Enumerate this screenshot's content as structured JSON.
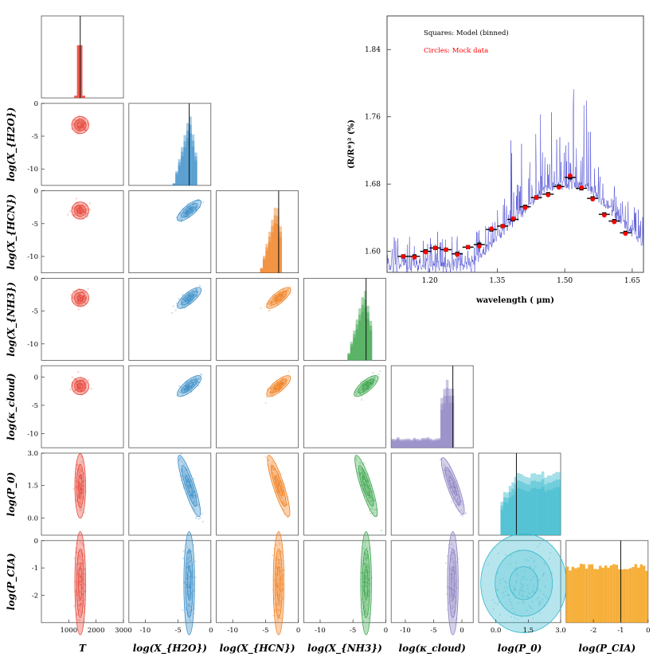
{
  "chart_data": {
    "type": "corner",
    "parameters": [
      {
        "key": "T",
        "label": "T",
        "color": "#e8473a",
        "range": [
          0,
          3000
        ],
        "ticks": [
          1000,
          2000,
          3000
        ],
        "true_value": 1420
      },
      {
        "key": "xh2o",
        "label": "log(X_H2O)",
        "color": "#3b8ec8",
        "range": [
          -12.5,
          0
        ],
        "ticks": [
          -10,
          -5,
          0
        ],
        "true_value": -3.3
      },
      {
        "key": "xhcn",
        "label": "log(X_HCN)",
        "color": "#f07f1e",
        "range": [
          -12.5,
          0
        ],
        "ticks": [
          -10,
          -5,
          0
        ],
        "true_value": -3.0
      },
      {
        "key": "xnh3",
        "label": "log(X_NH3)",
        "color": "#3aa54a",
        "range": [
          -12.5,
          0
        ],
        "ticks": [
          -10,
          -5,
          0
        ],
        "true_value": -3.0
      },
      {
        "key": "kcloud",
        "label": "log(kappa_cloud)",
        "color": "#8a7fc1",
        "range": [
          -12.5,
          2
        ],
        "ticks": [
          -10,
          -5,
          0
        ],
        "true_value": -1.6
      },
      {
        "key": "p0",
        "label": "log(P0)",
        "color": "#34b8cc",
        "range": [
          -0.8,
          3.0
        ],
        "ticks": [
          0.0,
          1.5,
          3.0
        ],
        "true_value": 0.95
      },
      {
        "key": "pcia",
        "label": "log(P_CIA)",
        "color": "#f5a623",
        "range": [
          -3.0,
          0
        ],
        "ticks": [
          -2,
          -1,
          0
        ],
        "true_value": -1.0
      }
    ],
    "axis_labels": {
      "T": "T",
      "xh2o": "log(X_{H2O})",
      "xhcn": "log(X_{HCN})",
      "xnh3": "log(X_{NH3})",
      "kcloud": "log(κ_cloud)",
      "p0": "log(P_0)",
      "pcia": "log(P_CIA)"
    },
    "tick_labels": {
      "T_y": [
        "0",
        "-5",
        "-10"
      ],
      "xh2o_y": [
        "0",
        "-5",
        "-10"
      ],
      "xhcn_y": [
        "0",
        "-5",
        "-10"
      ],
      "xnh3_y": [
        "0",
        "-5",
        "-10"
      ],
      "kcloud_y": [
        "0",
        "-5",
        "-10"
      ],
      "p0_y": [
        "3.0",
        "1.5",
        "0.0"
      ],
      "pcia_y": [
        "0",
        "-1",
        "-2"
      ],
      "T_x": [
        "1000",
        "2000",
        "3000"
      ],
      "log_x": [
        "-10",
        "-5",
        "0"
      ],
      "p0_x": [
        "0.0",
        "1.5",
        "3.0"
      ],
      "pcia_x": [
        "-2",
        "-1",
        "0"
      ]
    },
    "spectrum": {
      "type": "line",
      "xlabel": "wavelength ( μm)",
      "ylabel": "(R/R*)² (%)",
      "xlim": [
        1.105,
        1.675
      ],
      "ylim": [
        1.575,
        1.88
      ],
      "x_ticks": [
        1.2,
        1.35,
        1.5,
        1.65
      ],
      "x_tick_labels": [
        "1.20",
        "1.35",
        "1.50",
        "1.65"
      ],
      "y_ticks": [
        1.6,
        1.68,
        1.76,
        1.84
      ],
      "y_tick_labels": [
        "1.60",
        "1.68",
        "1.76",
        "1.84"
      ],
      "legend": [
        "Squares: Model (binned)",
        "Circles: Mock data"
      ],
      "legend_colors": [
        "#000000",
        "#ff0000"
      ],
      "wavelengths": [
        1.141,
        1.166,
        1.191,
        1.212,
        1.236,
        1.261,
        1.285,
        1.31,
        1.337,
        1.362,
        1.385,
        1.412,
        1.437,
        1.463,
        1.487,
        1.512,
        1.537,
        1.562,
        1.588,
        1.61,
        1.635
      ],
      "model_binned": [
        1.594,
        1.594,
        1.6,
        1.604,
        1.602,
        1.597,
        1.605,
        1.608,
        1.626,
        1.63,
        1.638,
        1.653,
        1.664,
        1.668,
        1.677,
        1.688,
        1.675,
        1.663,
        1.644,
        1.636,
        1.622
      ],
      "mock_data": [
        1.594,
        1.593,
        1.599,
        1.604,
        1.602,
        1.596,
        1.605,
        1.606,
        1.627,
        1.63,
        1.639,
        1.652,
        1.664,
        1.667,
        1.676,
        1.69,
        1.676,
        1.662,
        1.643,
        1.635,
        1.621
      ],
      "model_line_color": "#3333cc"
    }
  }
}
